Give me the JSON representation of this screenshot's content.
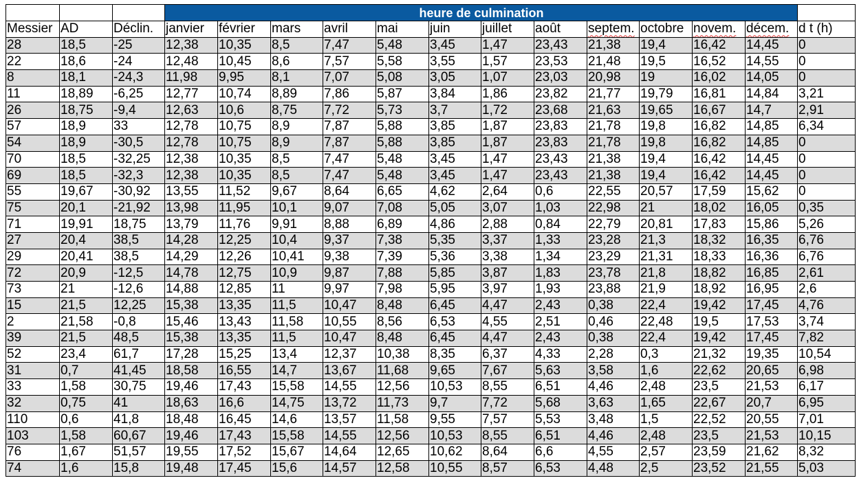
{
  "title": "heure de culmination",
  "colors": {
    "title_band": "#0a5aa0",
    "stripe": "#dcdcdc"
  },
  "columns": [
    "Messier",
    "AD",
    "Déclin.",
    "janvier",
    "février",
    "mars",
    "avril",
    "mai",
    "juin",
    "juillet",
    "août",
    "septem.",
    "octobre",
    "novem.",
    "décem.",
    "d t (h)"
  ],
  "rows": [
    [
      "28",
      "18,5",
      "-25",
      "12,38",
      "10,35",
      "8,5",
      "7,47",
      "5,48",
      "3,45",
      "1,47",
      "23,43",
      "21,38",
      "19,4",
      "16,42",
      "14,45",
      "0"
    ],
    [
      "22",
      "18,6",
      "-24",
      "12,48",
      "10,45",
      "8,6",
      "7,57",
      "5,58",
      "3,55",
      "1,57",
      "23,53",
      "21,48",
      "19,5",
      "16,52",
      "14,55",
      "0"
    ],
    [
      "8",
      "18,1",
      "-24,3",
      "11,98",
      "9,95",
      "8,1",
      "7,07",
      "5,08",
      "3,05",
      "1,07",
      "23,03",
      "20,98",
      "19",
      "16,02",
      "14,05",
      "0"
    ],
    [
      "11",
      "18,89",
      "-6,25",
      "12,77",
      "10,74",
      "8,89",
      "7,86",
      "5,87",
      "3,84",
      "1,86",
      "23,82",
      "21,77",
      "19,79",
      "16,81",
      "14,84",
      "3,21"
    ],
    [
      "26",
      "18,75",
      "-9,4",
      "12,63",
      "10,6",
      "8,75",
      "7,72",
      "5,73",
      "3,7",
      "1,72",
      "23,68",
      "21,63",
      "19,65",
      "16,67",
      "14,7",
      "2,91"
    ],
    [
      "57",
      "18,9",
      "33",
      "12,78",
      "10,75",
      "8,9",
      "7,87",
      "5,88",
      "3,85",
      "1,87",
      "23,83",
      "21,78",
      "19,8",
      "16,82",
      "14,85",
      "6,34"
    ],
    [
      "54",
      "18,9",
      "-30,5",
      "12,78",
      "10,75",
      "8,9",
      "7,87",
      "5,88",
      "3,85",
      "1,87",
      "23,83",
      "21,78",
      "19,8",
      "16,82",
      "14,85",
      "0"
    ],
    [
      "70",
      "18,5",
      "-32,25",
      "12,38",
      "10,35",
      "8,5",
      "7,47",
      "5,48",
      "3,45",
      "1,47",
      "23,43",
      "21,38",
      "19,4",
      "16,42",
      "14,45",
      "0"
    ],
    [
      "69",
      "18,5",
      "-32,3",
      "12,38",
      "10,35",
      "8,5",
      "7,47",
      "5,48",
      "3,45",
      "1,47",
      "23,43",
      "21,38",
      "19,4",
      "16,42",
      "14,45",
      "0"
    ],
    [
      "55",
      "19,67",
      "-30,92",
      "13,55",
      "11,52",
      "9,67",
      "8,64",
      "6,65",
      "4,62",
      "2,64",
      "0,6",
      "22,55",
      "20,57",
      "17,59",
      "15,62",
      "0"
    ],
    [
      "75",
      "20,1",
      "-21,92",
      "13,98",
      "11,95",
      "10,1",
      "9,07",
      "7,08",
      "5,05",
      "3,07",
      "1,03",
      "22,98",
      "21",
      "18,02",
      "16,05",
      "0,35"
    ],
    [
      "71",
      "19,91",
      "18,75",
      "13,79",
      "11,76",
      "9,91",
      "8,88",
      "6,89",
      "4,86",
      "2,88",
      "0,84",
      "22,79",
      "20,81",
      "17,83",
      "15,86",
      "5,26"
    ],
    [
      "27",
      "20,4",
      "38,5",
      "14,28",
      "12,25",
      "10,4",
      "9,37",
      "7,38",
      "5,35",
      "3,37",
      "1,33",
      "23,28",
      "21,3",
      "18,32",
      "16,35",
      "6,76"
    ],
    [
      "29",
      "20,41",
      "38,5",
      "14,29",
      "12,26",
      "10,41",
      "9,38",
      "7,39",
      "5,36",
      "3,38",
      "1,34",
      "23,29",
      "21,31",
      "18,33",
      "16,36",
      "6,76"
    ],
    [
      "72",
      "20,9",
      "-12,5",
      "14,78",
      "12,75",
      "10,9",
      "9,87",
      "7,88",
      "5,85",
      "3,87",
      "1,83",
      "23,78",
      "21,8",
      "18,82",
      "16,85",
      "2,61"
    ],
    [
      "73",
      "21",
      "-12,6",
      "14,88",
      "12,85",
      "11",
      "9,97",
      "7,98",
      "5,95",
      "3,97",
      "1,93",
      "23,88",
      "21,9",
      "18,92",
      "16,95",
      "2,6"
    ],
    [
      "15",
      "21,5",
      "12,25",
      "15,38",
      "13,35",
      "11,5",
      "10,47",
      "8,48",
      "6,45",
      "4,47",
      "2,43",
      "0,38",
      "22,4",
      "19,42",
      "17,45",
      "4,76"
    ],
    [
      "2",
      "21,58",
      "-0,8",
      "15,46",
      "13,43",
      "11,58",
      "10,55",
      "8,56",
      "6,53",
      "4,55",
      "2,51",
      "0,46",
      "22,48",
      "19,5",
      "17,53",
      "3,74"
    ],
    [
      "39",
      "21,5",
      "48,5",
      "15,38",
      "13,35",
      "11,5",
      "10,47",
      "8,48",
      "6,45",
      "4,47",
      "2,43",
      "0,38",
      "22,4",
      "19,42",
      "17,45",
      "7,82"
    ],
    [
      "52",
      "23,4",
      "61,7",
      "17,28",
      "15,25",
      "13,4",
      "12,37",
      "10,38",
      "8,35",
      "6,37",
      "4,33",
      "2,28",
      "0,3",
      "21,32",
      "19,35",
      "10,54"
    ],
    [
      "31",
      "0,7",
      "41,45",
      "18,58",
      "16,55",
      "14,7",
      "13,67",
      "11,68",
      "9,65",
      "7,67",
      "5,63",
      "3,58",
      "1,6",
      "22,62",
      "20,65",
      "6,98"
    ],
    [
      "33",
      "1,58",
      "30,75",
      "19,46",
      "17,43",
      "15,58",
      "14,55",
      "12,56",
      "10,53",
      "8,55",
      "6,51",
      "4,46",
      "2,48",
      "23,5",
      "21,53",
      "6,17"
    ],
    [
      "32",
      "0,75",
      "41",
      "18,63",
      "16,6",
      "14,75",
      "13,72",
      "11,73",
      "9,7",
      "7,72",
      "5,68",
      "3,63",
      "1,65",
      "22,67",
      "20,7",
      "6,95"
    ],
    [
      "110",
      "0,6",
      "41,8",
      "18,48",
      "16,45",
      "14,6",
      "13,57",
      "11,58",
      "9,55",
      "7,57",
      "5,53",
      "3,48",
      "1,5",
      "22,52",
      "20,55",
      "7,01"
    ],
    [
      "103",
      "1,58",
      "60,67",
      "19,46",
      "17,43",
      "15,58",
      "14,55",
      "12,56",
      "10,53",
      "8,55",
      "6,51",
      "4,46",
      "2,48",
      "23,5",
      "21,53",
      "10,15"
    ],
    [
      "76",
      "1,67",
      "51,57",
      "19,55",
      "17,52",
      "15,67",
      "14,64",
      "12,65",
      "10,62",
      "8,64",
      "6,6",
      "4,55",
      "2,57",
      "23,59",
      "21,62",
      "8,32"
    ],
    [
      "74",
      "1,6",
      "15,8",
      "19,48",
      "17,45",
      "15,6",
      "14,57",
      "12,58",
      "10,55",
      "8,57",
      "6,53",
      "4,48",
      "2,5",
      "23,52",
      "21,55",
      "5,03"
    ]
  ]
}
